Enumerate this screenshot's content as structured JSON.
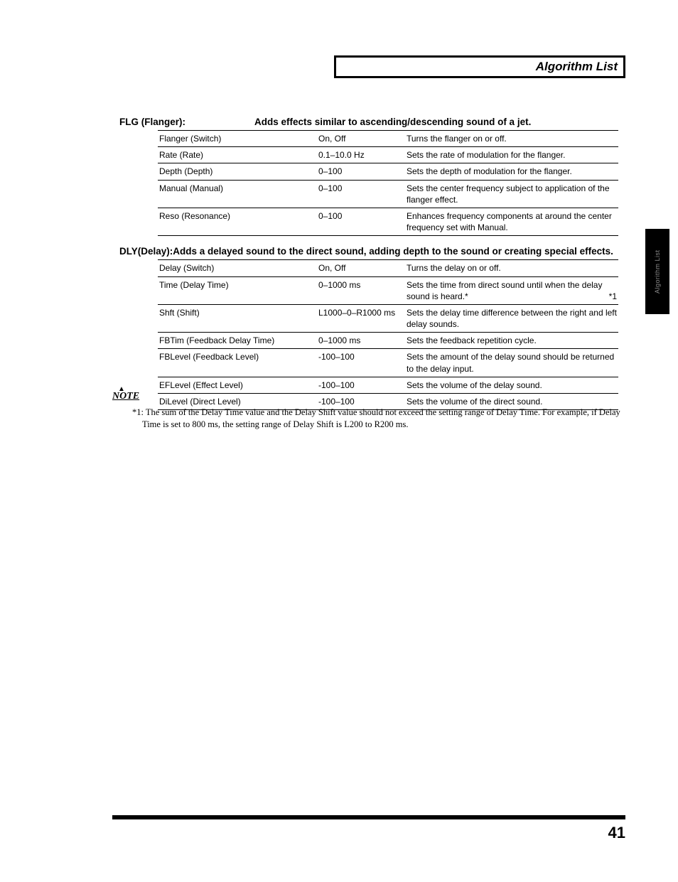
{
  "header": {
    "title": "Algorithm List"
  },
  "side_tab": "Algorithm List",
  "page_number": "41",
  "sections": [
    {
      "name": "FLG (Flanger):",
      "desc": "Adds effects similar to ascending/descending sound of a jet.",
      "inline": false,
      "rows": [
        {
          "param": "Flanger (Switch)",
          "range": "On, Off",
          "desc": "Turns the flanger on or off."
        },
        {
          "param": "Rate (Rate)",
          "range": "0.1–10.0 Hz",
          "desc": "Sets the rate of modulation for the flanger."
        },
        {
          "param": "Depth (Depth)",
          "range": "0–100",
          "desc": "Sets the depth of modulation for the flanger."
        },
        {
          "param": "Manual (Manual)",
          "range": "0–100",
          "desc": "Sets the center frequency subject to application of the flanger effect."
        },
        {
          "param": "Reso (Resonance)",
          "range": "0–100",
          "desc": "Enhances frequency components at around the center frequency set with Manual."
        }
      ]
    },
    {
      "name": "DLY(Delay):",
      "desc": "Adds a delayed sound to the direct sound, adding depth to the sound or creating special effects.",
      "inline": true,
      "rows": [
        {
          "param": "Delay (Switch)",
          "range": "On, Off",
          "desc": "Turns the delay on or off."
        },
        {
          "param": "Time (Delay Time)",
          "range": "0–1000 ms",
          "desc": "Sets the time from direct sound until when the delay sound is heard.*",
          "mark": "*1"
        },
        {
          "param": "Shft (Shift)",
          "range": "L1000–0–R1000 ms",
          "desc": "Sets the delay time difference between the right and left delay sounds."
        },
        {
          "param": "FBTim (Feedback Delay Time)",
          "range": "0–1000 ms",
          "desc": "Sets the feedback repetition cycle."
        },
        {
          "param": "FBLevel (Feedback Level)",
          "range": "-100–100",
          "desc": "Sets the amount of the delay sound should be returned to the delay input."
        },
        {
          "param": "EFLevel (Effect Level)",
          "range": "-100–100",
          "desc": "Sets the volume of the delay sound."
        },
        {
          "param": "DiLevel (Direct Level)",
          "range": "-100–100",
          "desc": "Sets the volume of the direct sound."
        }
      ]
    }
  ],
  "note": {
    "label": "NOTE",
    "lines": [
      "*1: The sum of the Delay Time value and the Delay Shift value should not exceed the setting range of Delay Time. For example, if Delay Time is set to 800 ms, the setting range of Delay Shift is L200 to R200 ms."
    ]
  }
}
